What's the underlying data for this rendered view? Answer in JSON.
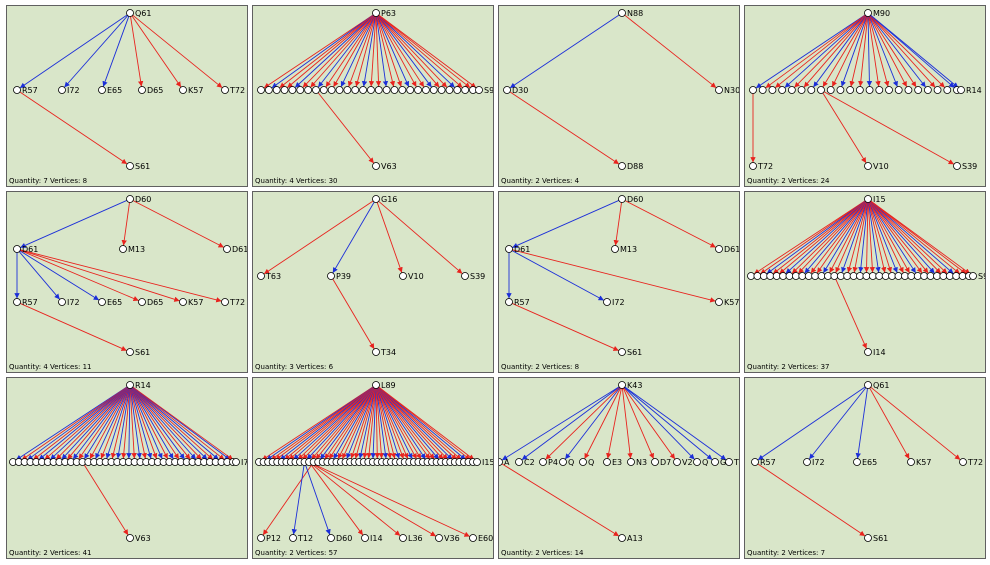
{
  "colors": {
    "red": "#e8231e",
    "blue": "#1c2fd8",
    "panel_bg": "#d9e6c9",
    "border": "#606060"
  },
  "captions": {
    "quantity_label": "Quantity:",
    "vertices_label": "Vertices:"
  },
  "panels": [
    {
      "quantity": "7",
      "vertices": "8",
      "nodes": [
        "Q61",
        "R57",
        "I72",
        "E65",
        "D65",
        "K57",
        "T72",
        "S61"
      ],
      "edges": [
        [
          "Q61",
          "R57",
          "blue"
        ],
        [
          "Q61",
          "I72",
          "blue"
        ],
        [
          "Q61",
          "E65",
          "blue"
        ],
        [
          "Q61",
          "D65",
          "red"
        ],
        [
          "Q61",
          "K57",
          "red"
        ],
        [
          "Q61",
          "T72",
          "red"
        ],
        [
          "R57",
          "S61",
          "red"
        ]
      ]
    },
    {
      "quantity": "4",
      "vertices": "30",
      "nodes": [
        "P63",
        "S92",
        "V63"
      ],
      "edges": [
        [
          "P63",
          "V63",
          "red"
        ]
      ]
    },
    {
      "quantity": "2",
      "vertices": "4",
      "nodes": [
        "N88",
        "D30",
        "N30",
        "D88"
      ],
      "edges": [
        [
          "N88",
          "D30",
          "blue"
        ],
        [
          "N88",
          "N30",
          "red"
        ],
        [
          "D30",
          "D88",
          "red"
        ]
      ]
    },
    {
      "quantity": "2",
      "vertices": "24",
      "nodes": [
        "M90",
        "R14",
        "T72",
        "V10",
        "S39"
      ],
      "edges": []
    },
    {
      "quantity": "4",
      "vertices": "11",
      "nodes": [
        "D60",
        "D61",
        "M13",
        "R57",
        "I72",
        "E65",
        "D65",
        "K57",
        "T72",
        "S61"
      ],
      "edges": [
        [
          "D60",
          "D61",
          "blue"
        ],
        [
          "D60",
          "M13",
          "red"
        ],
        [
          "D60",
          "D61b",
          "red"
        ],
        [
          "D61",
          "R57",
          "blue"
        ],
        [
          "D61",
          "I72",
          "blue"
        ],
        [
          "D61",
          "E65",
          "blue"
        ],
        [
          "D61",
          "D65",
          "red"
        ],
        [
          "D61",
          "K57",
          "red"
        ],
        [
          "D61",
          "T72",
          "red"
        ],
        [
          "R57",
          "S61",
          "red"
        ]
      ]
    },
    {
      "quantity": "3",
      "vertices": "6",
      "nodes": [
        "G16",
        "T63",
        "P39",
        "V10",
        "S39",
        "T34"
      ],
      "edges": [
        [
          "G16",
          "T63",
          "red"
        ],
        [
          "G16",
          "P39",
          "blue"
        ],
        [
          "G16",
          "V10",
          "red"
        ],
        [
          "G16",
          "S39",
          "red"
        ],
        [
          "P39",
          "T34",
          "red"
        ]
      ]
    },
    {
      "quantity": "2",
      "vertices": "8",
      "nodes": [
        "D60",
        "D61",
        "M13",
        "R57",
        "I72",
        "K57",
        "S61"
      ],
      "edges": []
    },
    {
      "quantity": "2",
      "vertices": "37",
      "nodes": [
        "I15",
        "S92",
        "I14"
      ],
      "edges": []
    },
    {
      "quantity": "2",
      "vertices": "41",
      "nodes": [
        "R14",
        "I71",
        "V63"
      ],
      "edges": []
    },
    {
      "quantity": "2",
      "vertices": "57",
      "nodes": [
        "L89",
        "I15",
        "P12",
        "T12",
        "D60",
        "I14",
        "L36",
        "V36",
        "E60"
      ],
      "edges": []
    },
    {
      "quantity": "2",
      "vertices": "14",
      "nodes": [
        "K43",
        "A",
        "C2",
        "P4",
        "Q",
        "Q",
        "E3",
        "N3",
        "D7",
        "V2",
        "Q",
        "G",
        "T4",
        "A13"
      ],
      "edges": []
    },
    {
      "quantity": "2",
      "vertices": "7",
      "nodes": [
        "Q61",
        "R57",
        "I72",
        "E65",
        "K57",
        "T72",
        "S61"
      ],
      "edges": []
    }
  ]
}
